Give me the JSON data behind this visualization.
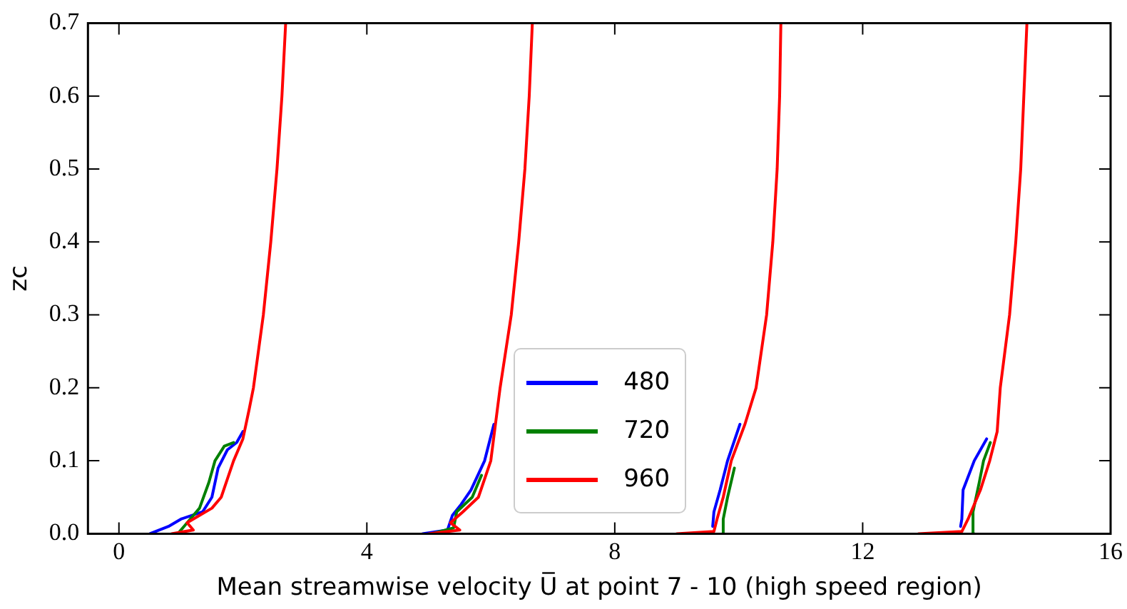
{
  "chart_data": {
    "type": "line",
    "xlabel": "Mean streamwise velocity U̅ at point 7 - 10 (high speed region)",
    "ylabel": "zc",
    "xlim": [
      -0.5,
      16
    ],
    "xticks": [
      0,
      4,
      8,
      12,
      16
    ],
    "ylim": [
      0,
      0.7
    ],
    "yticks": [
      {
        "value": 0,
        "label": "0.0"
      },
      {
        "value": 0.1,
        "label": "0.1"
      },
      {
        "value": 0.2,
        "label": "0.2"
      },
      {
        "value": 0.3,
        "label": "0.3"
      },
      {
        "value": 0.4,
        "label": "0.4"
      },
      {
        "value": 0.5,
        "label": "0.5"
      },
      {
        "value": 0.6,
        "label": "0.6"
      },
      {
        "value": 0.7,
        "label": "0.7"
      }
    ],
    "grid": false,
    "legend": "bottom",
    "marker": "none",
    "line_style": "solid",
    "series": [
      {
        "name": "480",
        "color": "#0000ff",
        "x": [
          0.5,
          0.8,
          1.0,
          1.35,
          1.5,
          1.6,
          1.75,
          1.9,
          2.0,
          null,
          4.9,
          5.3,
          5.38,
          5.52,
          5.68,
          5.9,
          6.05,
          null,
          9.58,
          9.6,
          9.7,
          9.82,
          10.02,
          null,
          13.58,
          13.6,
          13.62,
          13.8,
          14.0
        ],
        "values": [
          0,
          0.01,
          0.02,
          0.03,
          0.05,
          0.09,
          0.115,
          0.125,
          0.14,
          null,
          0,
          0.005,
          0.025,
          0.04,
          0.06,
          0.1,
          0.15,
          null,
          0.01,
          0.03,
          0.06,
          0.1,
          0.15,
          null,
          0.01,
          0.02,
          0.06,
          0.1,
          0.13
        ]
      },
      {
        "name": "720",
        "color": "#008000",
        "x": [
          0.95,
          1.05,
          1.15,
          1.3,
          1.45,
          1.55,
          1.7,
          1.85,
          null,
          5.05,
          5.4,
          5.45,
          5.7,
          5.85,
          null,
          9.75,
          9.75,
          9.82,
          9.93,
          null,
          13.8,
          13.78,
          13.88,
          13.95,
          14.06
        ],
        "values": [
          0,
          0.01,
          0.02,
          0.035,
          0.07,
          0.1,
          0.12,
          0.125,
          null,
          0,
          0.008,
          0.03,
          0.05,
          0.08,
          null,
          0,
          0.02,
          0.05,
          0.09,
          null,
          0,
          0.03,
          0.07,
          0.1,
          0.125
        ]
      },
      {
        "name": "960",
        "color": "#ff0000",
        "x": [
          0.85,
          1.2,
          1.1,
          1.3,
          1.5,
          1.65,
          1.75,
          1.85,
          2.0,
          2.1,
          2.17,
          2.33,
          2.45,
          2.55,
          2.63,
          2.69,
          null,
          5.0,
          5.5,
          5.35,
          5.55,
          5.8,
          6.0,
          6.15,
          6.33,
          6.45,
          6.55,
          6.62,
          6.67,
          null,
          9.0,
          9.6,
          9.65,
          9.75,
          9.88,
          10.1,
          10.28,
          10.45,
          10.55,
          10.62,
          10.66,
          10.68,
          null,
          12.9,
          13.6,
          13.7,
          13.9,
          14.05,
          14.17,
          14.22,
          14.37,
          14.47,
          14.55,
          14.6,
          14.65
        ],
        "values": [
          0,
          0.005,
          0.015,
          0.025,
          0.035,
          0.05,
          0.075,
          0.1,
          0.13,
          0.17,
          0.2,
          0.3,
          0.4,
          0.5,
          0.6,
          0.7,
          null,
          0,
          0.005,
          0.015,
          0.03,
          0.05,
          0.1,
          0.2,
          0.3,
          0.4,
          0.5,
          0.6,
          0.7,
          null,
          0,
          0.003,
          0.02,
          0.05,
          0.1,
          0.15,
          0.2,
          0.3,
          0.4,
          0.5,
          0.6,
          0.7,
          null,
          0,
          0.003,
          0.02,
          0.06,
          0.1,
          0.14,
          0.2,
          0.3,
          0.4,
          0.5,
          0.6,
          0.7
        ]
      }
    ]
  }
}
